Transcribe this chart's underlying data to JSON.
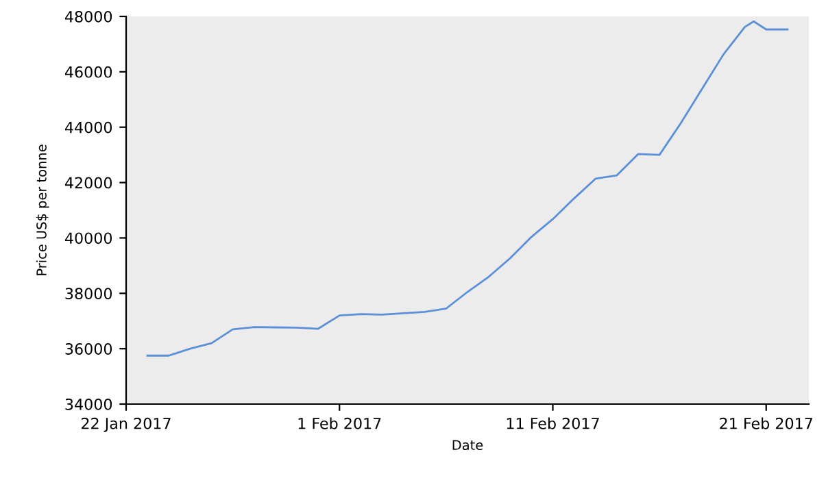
{
  "chart_data": {
    "type": "line",
    "xlabel": "Date",
    "ylabel": "Price US$ per tonne",
    "x": [
      "2017-01-23",
      "2017-01-24",
      "2017-01-25",
      "2017-01-26",
      "2017-01-27",
      "2017-01-28",
      "2017-01-29",
      "2017-01-30",
      "2017-01-31",
      "2017-02-01",
      "2017-02-02",
      "2017-02-03",
      "2017-02-04",
      "2017-02-05",
      "2017-02-06",
      "2017-02-07",
      "2017-02-08",
      "2017-02-09",
      "2017-02-10",
      "2017-02-11",
      "2017-02-12",
      "2017-02-13",
      "2017-02-14",
      "2017-02-15",
      "2017-02-16",
      "2017-02-17",
      "2017-02-18",
      "2017-02-19",
      "2017-02-20",
      "2017-02-20T10:00",
      "2017-02-21",
      "2017-02-22"
    ],
    "series": [
      {
        "color": "#5b8fd8",
        "values": [
          35750,
          35750,
          36000,
          36200,
          36700,
          36780,
          36770,
          36760,
          36720,
          37200,
          37250,
          37230,
          37280,
          37330,
          37450,
          38050,
          38600,
          39270,
          40040,
          40680,
          41430,
          42140,
          42260,
          43030,
          43000,
          44150,
          45390,
          46630,
          47620,
          47820,
          47530,
          47530
        ]
      }
    ],
    "xlim": [
      "2017-01-22",
      "2017-02-23"
    ],
    "xticks": [
      {
        "value": "2017-01-22",
        "label": "22 Jan 2017"
      },
      {
        "value": "2017-02-01",
        "label": "1 Feb 2017"
      },
      {
        "value": "2017-02-11",
        "label": "11 Feb 2017"
      },
      {
        "value": "2017-02-21",
        "label": "21 Feb 2017"
      }
    ],
    "ylim": [
      34000,
      48000
    ],
    "yticks": [
      34000,
      36000,
      38000,
      40000,
      42000,
      44000,
      46000,
      48000
    ],
    "grid": false,
    "marker": "none",
    "line_style": "solid"
  }
}
